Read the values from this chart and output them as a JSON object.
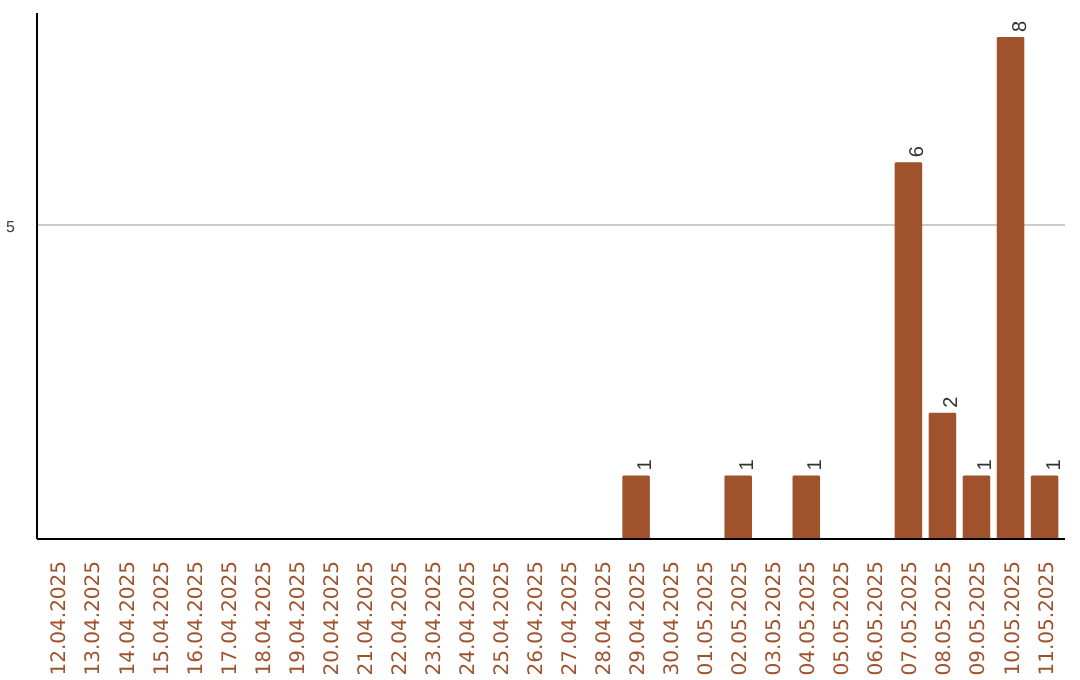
{
  "chart_data": {
    "type": "bar",
    "categories": [
      "12.04.2025",
      "13.04.2025",
      "14.04.2025",
      "15.04.2025",
      "16.04.2025",
      "17.04.2025",
      "18.04.2025",
      "19.04.2025",
      "20.04.2025",
      "21.04.2025",
      "22.04.2025",
      "23.04.2025",
      "24.04.2025",
      "25.04.2025",
      "26.04.2025",
      "27.04.2025",
      "28.04.2025",
      "29.04.2025",
      "30.04.2025",
      "01.05.2025",
      "02.05.2025",
      "03.05.2025",
      "04.05.2025",
      "05.05.2025",
      "06.05.2025",
      "07.05.2025",
      "08.05.2025",
      "09.05.2025",
      "10.05.2025",
      "11.05.2025"
    ],
    "values": [
      null,
      null,
      null,
      null,
      null,
      null,
      null,
      null,
      null,
      null,
      null,
      null,
      null,
      null,
      null,
      null,
      null,
      1,
      null,
      null,
      1,
      null,
      1,
      null,
      null,
      6,
      2,
      1,
      8,
      1
    ],
    "color": "#a0522d",
    "ylim": [
      0,
      8.4
    ],
    "yticks": [
      5
    ],
    "grid": "y",
    "data_labels": true
  }
}
